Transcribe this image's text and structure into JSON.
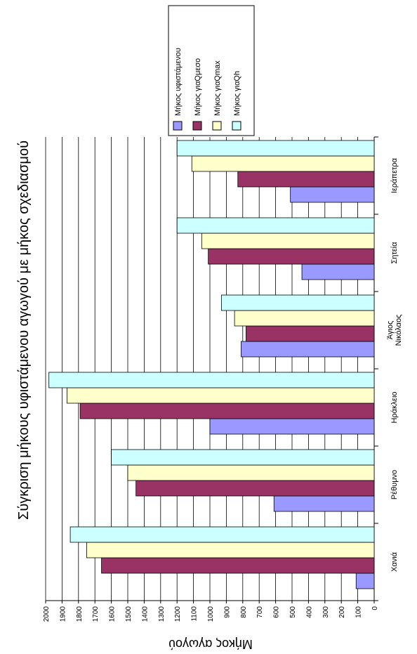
{
  "chart_data": {
    "type": "bar",
    "title": "Σύγκριση μήκους υφιστάμενου αγωγού με μήκος σχεδιασμού",
    "y_label": "Μήκος αγωγού",
    "categories": [
      "Χανιά",
      "Ρέθυμνο",
      "Ηράκλειο",
      "Άγιος Νικόλαος",
      "Σητεία",
      "Ιεράπετρα"
    ],
    "series": [
      {
        "name": "Μήκος υφιστάμενου",
        "color": "#9999ff",
        "values": [
          110,
          610,
          1000,
          810,
          440,
          510
        ]
      },
      {
        "name": "Μήκος γιαQμεσο",
        "color": "#993366",
        "values": [
          1660,
          1450,
          1790,
          780,
          1010,
          830
        ]
      },
      {
        "name": "Μήκος γιαQmax",
        "color": "#ffffcc",
        "values": [
          1750,
          1500,
          1870,
          850,
          1050,
          1110
        ]
      },
      {
        "name": "Μήκος γιαQh",
        "color": "#ccffff",
        "values": [
          1850,
          1600,
          1980,
          930,
          1200,
          1200
        ]
      }
    ],
    "ylim": [
      0,
      2000
    ],
    "yticks": [
      0,
      100,
      200,
      300,
      400,
      500,
      600,
      700,
      800,
      900,
      1000,
      1100,
      1200,
      1300,
      1400,
      1500,
      1600,
      1700,
      1800,
      1900,
      2000
    ],
    "grid": true,
    "legend": "right"
  }
}
